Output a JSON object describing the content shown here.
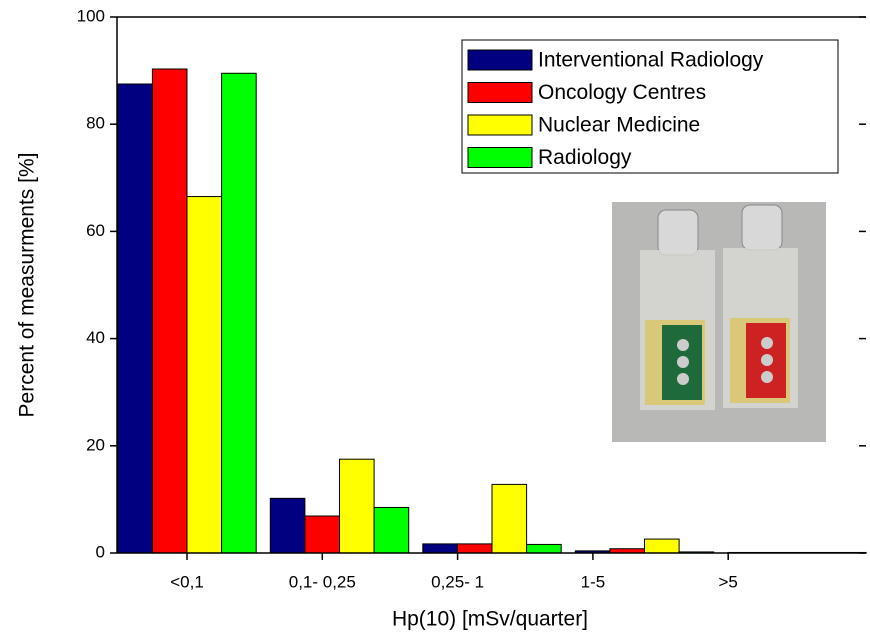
{
  "chart_data": {
    "type": "bar",
    "xlabel": "Hp(10) [mSv/quarter]",
    "ylabel": "Percent of measurments [%]",
    "categories": [
      "<0,1",
      "0,1- 0,25",
      "0,25- 1",
      "1-5",
      ">5"
    ],
    "series": [
      {
        "name": "Interventional Radiology",
        "color": "#000080",
        "values": [
          87.5,
          10.2,
          1.7,
          0.4,
          0.1
        ]
      },
      {
        "name": "Oncology Centres",
        "color": "#ff0000",
        "values": [
          90.3,
          6.9,
          1.7,
          0.8,
          0.1
        ]
      },
      {
        "name": "Nuclear Medicine",
        "color": "#ffff00",
        "values": [
          66.5,
          17.5,
          12.8,
          2.6,
          0.1
        ]
      },
      {
        "name": "Radiology",
        "color": "#00ff00",
        "values": [
          89.5,
          8.5,
          1.6,
          0.2,
          0.1
        ]
      }
    ],
    "ylim": [
      0,
      100
    ],
    "yticks": [
      0,
      20,
      40,
      60,
      80,
      100
    ],
    "legend": "upper right"
  }
}
